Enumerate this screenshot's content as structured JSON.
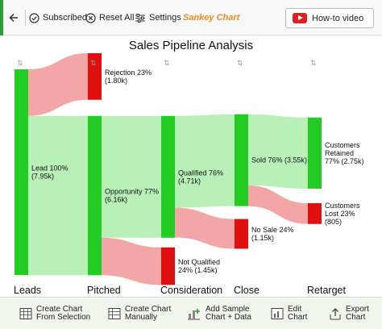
{
  "toolbar": {
    "subscribed_label": "Subscribed",
    "reset_label": "Reset All",
    "settings_label": "Settings",
    "brand_label": "Sankey Chart",
    "howto_label": "How-to video"
  },
  "bottom_bar": {
    "create_selection": [
      "Create Chart",
      "From Selection"
    ],
    "create_manual": [
      "Create Chart",
      "Manually"
    ],
    "add_sample": [
      "Add Sample",
      "Chart + Data"
    ],
    "edit_chart": [
      "Edit",
      "Chart"
    ],
    "export_chart": [
      "Export",
      "Chart"
    ]
  },
  "colors": {
    "green_node": "#22cc22",
    "red_node": "#e01010",
    "green_flow": "#b8f0b8",
    "red_flow": "#f3a6a6",
    "brand": "#f08a24"
  },
  "chart_data": {
    "type": "sankey",
    "title": "Sales Pipeline Analysis",
    "stages": [
      "Leads",
      "Pitched",
      "Consideration",
      "Close",
      "Retarget"
    ],
    "nodes": [
      {
        "id": "lead",
        "stage": 0,
        "label": [
          "Lead 100%",
          "(7.95k)"
        ],
        "value": 7.95,
        "color": "green"
      },
      {
        "id": "rejection",
        "stage": 1,
        "label": [
          "Rejection 23%",
          "(1.80k)"
        ],
        "value": 1.8,
        "color": "red"
      },
      {
        "id": "opportunity",
        "stage": 1,
        "label": [
          "Opportunity 77%",
          "(6.16k)"
        ],
        "value": 6.16,
        "color": "green"
      },
      {
        "id": "qualified",
        "stage": 2,
        "label": [
          "Qualified 76%",
          "(4.71k)"
        ],
        "value": 4.71,
        "color": "green"
      },
      {
        "id": "notqualified",
        "stage": 2,
        "label": [
          "Not Qualified",
          "24% (1.45k)"
        ],
        "value": 1.45,
        "color": "red"
      },
      {
        "id": "sold",
        "stage": 3,
        "label": [
          "Sold 76% (3.55k)"
        ],
        "value": 3.55,
        "color": "green"
      },
      {
        "id": "nosale",
        "stage": 3,
        "label": [
          "No Sale 24%",
          "(1.15k)"
        ],
        "value": 1.15,
        "color": "red"
      },
      {
        "id": "retained",
        "stage": 4,
        "label": [
          "Customers",
          "Retained",
          "77% (2.75k)"
        ],
        "value": 2.75,
        "color": "green"
      },
      {
        "id": "lost",
        "stage": 4,
        "label": [
          "Customers",
          "Lost 23%",
          "(805)"
        ],
        "value": 0.805,
        "color": "red"
      }
    ],
    "links": [
      {
        "source": "lead",
        "target": "rejection",
        "value": 1.8
      },
      {
        "source": "lead",
        "target": "opportunity",
        "value": 6.16
      },
      {
        "source": "opportunity",
        "target": "qualified",
        "value": 4.71
      },
      {
        "source": "opportunity",
        "target": "notqualified",
        "value": 1.45
      },
      {
        "source": "qualified",
        "target": "sold",
        "value": 3.55
      },
      {
        "source": "qualified",
        "target": "nosale",
        "value": 1.15
      },
      {
        "source": "sold",
        "target": "retained",
        "value": 2.75
      },
      {
        "source": "sold",
        "target": "lost",
        "value": 0.805
      }
    ]
  }
}
